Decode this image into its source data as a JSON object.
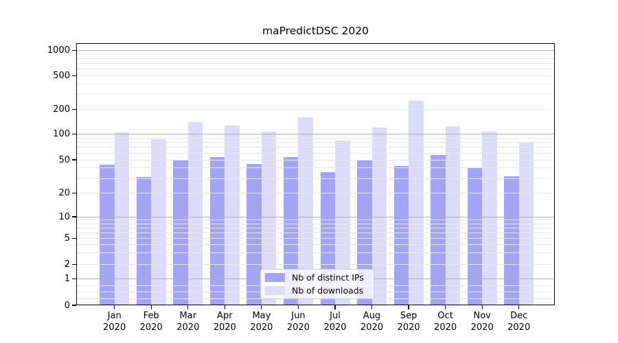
{
  "title": "maPredictDSC 2020",
  "colors": {
    "background": "#ffffff",
    "axis": "#000000",
    "major_grid": "#b0b0b0",
    "minor_grid": "#e8e8e8",
    "ips_bar": "#a4a4f6",
    "downloads_bar": "#dcdcfa",
    "legend_border": "#cccccc"
  },
  "y_axis": {
    "tick_labels": [
      "0",
      "1",
      "2",
      "5",
      "10",
      "20",
      "50",
      "100",
      "200",
      "500",
      "1000"
    ],
    "tick_values": [
      0,
      1,
      2,
      5,
      10,
      20,
      50,
      100,
      200,
      500,
      1000
    ]
  },
  "x_axis": {
    "categories": [
      {
        "line1": "Jan",
        "line2": "2020"
      },
      {
        "line1": "Feb",
        "line2": "2020"
      },
      {
        "line1": "Mar",
        "line2": "2020"
      },
      {
        "line1": "Apr",
        "line2": "2020"
      },
      {
        "line1": "May",
        "line2": "2020"
      },
      {
        "line1": "Jun",
        "line2": "2020"
      },
      {
        "line1": "Jul",
        "line2": "2020"
      },
      {
        "line1": "Aug",
        "line2": "2020"
      },
      {
        "line1": "Sep",
        "line2": "2020"
      },
      {
        "line1": "Oct",
        "line2": "2020"
      },
      {
        "line1": "Nov",
        "line2": "2020"
      },
      {
        "line1": "Dec",
        "line2": "2020"
      }
    ]
  },
  "legend": {
    "items": [
      {
        "label": "Nb of distinct IPs"
      },
      {
        "label": "Nb of downloads"
      }
    ]
  },
  "chart_data": {
    "type": "bar",
    "title": "maPredictDSC 2020",
    "categories": [
      "Jan 2020",
      "Feb 2020",
      "Mar 2020",
      "Apr 2020",
      "May 2020",
      "Jun 2020",
      "Jul 2020",
      "Aug 2020",
      "Sep 2020",
      "Oct 2020",
      "Nov 2020",
      "Dec 2020"
    ],
    "series": [
      {
        "name": "Nb of distinct IPs",
        "color": "#a4a4f6",
        "values": [
          44,
          31,
          50,
          54,
          45,
          54,
          36,
          50,
          42,
          57,
          41,
          32
        ]
      },
      {
        "name": "Nb of downloads",
        "color": "#dcdcfa",
        "values": [
          105,
          87,
          140,
          126,
          108,
          160,
          84,
          121,
          252,
          125,
          107,
          80
        ]
      }
    ],
    "xlabel": "",
    "ylabel": "",
    "yscale": "symlog",
    "y_ticks": [
      0,
      1,
      2,
      5,
      10,
      20,
      50,
      100,
      200,
      500,
      1000
    ],
    "ylim": [
      0,
      1200
    ],
    "grid": true,
    "legend_position": "lower-center-inside"
  }
}
